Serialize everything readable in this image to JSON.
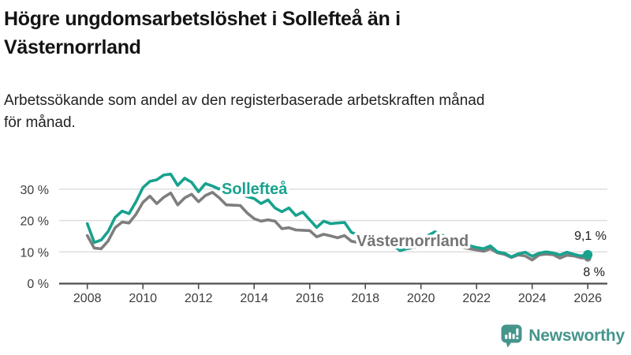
{
  "header": {
    "title_line1": "Högre ungdomsarbetslöshet i Sollefteå än i",
    "title_line2": "Västernorrland",
    "subtitle_line1": "Arbetssökande som andel av den registerbaserade arbetskraften månad",
    "subtitle_line2": "för månad."
  },
  "colors": {
    "solleftea": "#17a28e",
    "vasternorrland": "#7e7e7e",
    "vasternorrland_label": "#757575",
    "grid": "#dcdcdc",
    "axis": "#4d4d4d",
    "tick_text": "#3d3d3d",
    "value_text": "#1a1a1a",
    "logo": "#45958c"
  },
  "chart_data": {
    "type": "line",
    "title": "Högre ungdomsarbetslöshet i Sollefteå än i Västernorrland",
    "subtitle": "Arbetssökande som andel av den registerbaserade arbetskraften månad för månad.",
    "xlabel": "",
    "ylabel": "",
    "unit": "%",
    "xlim": [
      2007.9,
      2026.7
    ],
    "ylim": [
      0,
      36
    ],
    "grid": "horizontal",
    "x_ticks": [
      2008,
      2010,
      2012,
      2014,
      2016,
      2018,
      2020,
      2022,
      2024,
      2026
    ],
    "y_ticks": [
      0,
      10,
      20,
      30
    ],
    "y_tick_labels": [
      "0 %",
      "10 %",
      "20 %",
      "30 %"
    ],
    "series": [
      {
        "name": "Västernorrland",
        "color": "#7e7e7e",
        "last_value_label": "8 %",
        "points": [
          [
            2008.0,
            15.2
          ],
          [
            2008.25,
            11.2
          ],
          [
            2008.5,
            11.0
          ],
          [
            2008.75,
            13.5
          ],
          [
            2009.0,
            17.7
          ],
          [
            2009.25,
            19.5
          ],
          [
            2009.5,
            19.2
          ],
          [
            2009.75,
            22.0
          ],
          [
            2010.0,
            25.8
          ],
          [
            2010.25,
            27.8
          ],
          [
            2010.5,
            25.4
          ],
          [
            2010.75,
            27.4
          ],
          [
            2011.0,
            28.8
          ],
          [
            2011.25,
            25.0
          ],
          [
            2011.5,
            27.2
          ],
          [
            2011.75,
            28.4
          ],
          [
            2012.0,
            26.0
          ],
          [
            2012.25,
            28.0
          ],
          [
            2012.5,
            29.0
          ],
          [
            2012.75,
            27.2
          ],
          [
            2013.0,
            25.0
          ],
          [
            2013.25,
            24.9
          ],
          [
            2013.5,
            24.8
          ],
          [
            2013.75,
            22.4
          ],
          [
            2014.0,
            20.6
          ],
          [
            2014.25,
            19.8
          ],
          [
            2014.5,
            20.2
          ],
          [
            2014.75,
            19.8
          ],
          [
            2015.0,
            17.4
          ],
          [
            2015.25,
            17.7
          ],
          [
            2015.5,
            17.0
          ],
          [
            2015.75,
            16.9
          ],
          [
            2016.0,
            16.8
          ],
          [
            2016.25,
            14.8
          ],
          [
            2016.5,
            15.6
          ],
          [
            2016.75,
            15.1
          ],
          [
            2017.0,
            14.5
          ],
          [
            2017.25,
            15.2
          ],
          [
            2017.5,
            13.4
          ],
          [
            2017.75,
            13.0
          ],
          [
            2018.0,
            12.8
          ],
          [
            2018.25,
            12.4
          ],
          [
            2018.5,
            12.2
          ],
          [
            2018.75,
            12.0
          ],
          [
            2019.0,
            11.6
          ],
          [
            2019.25,
            10.8
          ],
          [
            2019.5,
            11.0
          ],
          [
            2019.75,
            11.4
          ],
          [
            2020.0,
            12.0
          ],
          [
            2020.25,
            13.4
          ],
          [
            2020.5,
            14.0
          ],
          [
            2020.75,
            13.4
          ],
          [
            2021.0,
            12.9
          ],
          [
            2021.25,
            12.0
          ],
          [
            2021.5,
            11.4
          ],
          [
            2021.75,
            11.0
          ],
          [
            2022.0,
            10.6
          ],
          [
            2022.25,
            10.2
          ],
          [
            2022.5,
            11.0
          ],
          [
            2022.75,
            9.7
          ],
          [
            2023.0,
            9.2
          ],
          [
            2023.25,
            8.2
          ],
          [
            2023.5,
            9.0
          ],
          [
            2023.75,
            8.7
          ],
          [
            2024.0,
            7.4
          ],
          [
            2024.25,
            9.0
          ],
          [
            2024.5,
            9.3
          ],
          [
            2024.75,
            9.1
          ],
          [
            2025.0,
            8.0
          ],
          [
            2025.25,
            8.9
          ],
          [
            2025.5,
            8.7
          ],
          [
            2025.75,
            8.1
          ],
          [
            2026.0,
            8.0
          ]
        ]
      },
      {
        "name": "Sollefteå",
        "color": "#17a28e",
        "last_value_label": "9,1 %",
        "points": [
          [
            2008.0,
            19.0
          ],
          [
            2008.25,
            13.0
          ],
          [
            2008.5,
            13.8
          ],
          [
            2008.75,
            16.5
          ],
          [
            2009.0,
            21.0
          ],
          [
            2009.25,
            23.0
          ],
          [
            2009.5,
            22.2
          ],
          [
            2009.75,
            26.0
          ],
          [
            2010.0,
            30.5
          ],
          [
            2010.25,
            32.5
          ],
          [
            2010.5,
            33.0
          ],
          [
            2010.75,
            34.5
          ],
          [
            2011.0,
            34.8
          ],
          [
            2011.25,
            31.2
          ],
          [
            2011.5,
            33.5
          ],
          [
            2011.75,
            32.2
          ],
          [
            2012.0,
            29.2
          ],
          [
            2012.25,
            31.8
          ],
          [
            2012.5,
            31.0
          ],
          [
            2012.75,
            30.0
          ],
          [
            2013.0,
            31.0
          ],
          [
            2013.25,
            30.2
          ],
          [
            2013.5,
            28.8
          ],
          [
            2013.75,
            27.6
          ],
          [
            2014.0,
            27.0
          ],
          [
            2014.25,
            25.4
          ],
          [
            2014.5,
            26.6
          ],
          [
            2014.75,
            24.0
          ],
          [
            2015.0,
            22.8
          ],
          [
            2015.25,
            24.0
          ],
          [
            2015.5,
            21.6
          ],
          [
            2015.75,
            22.7
          ],
          [
            2016.0,
            20.2
          ],
          [
            2016.25,
            17.8
          ],
          [
            2016.5,
            19.8
          ],
          [
            2016.75,
            19.0
          ],
          [
            2017.0,
            19.2
          ],
          [
            2017.25,
            19.4
          ],
          [
            2017.5,
            16.2
          ],
          [
            2017.75,
            15.4
          ],
          [
            2018.0,
            15.0
          ],
          [
            2018.25,
            14.2
          ],
          [
            2018.5,
            13.6
          ],
          [
            2018.75,
            13.0
          ],
          [
            2019.0,
            12.2
          ],
          [
            2019.25,
            10.4
          ],
          [
            2019.5,
            11.0
          ],
          [
            2019.75,
            12.0
          ],
          [
            2020.0,
            13.2
          ],
          [
            2020.25,
            15.2
          ],
          [
            2020.5,
            16.4
          ],
          [
            2020.75,
            15.4
          ],
          [
            2021.0,
            14.4
          ],
          [
            2021.25,
            13.4
          ],
          [
            2021.5,
            12.6
          ],
          [
            2021.75,
            12.0
          ],
          [
            2022.0,
            11.4
          ],
          [
            2022.25,
            11.0
          ],
          [
            2022.5,
            11.9
          ],
          [
            2022.75,
            10.0
          ],
          [
            2023.0,
            9.6
          ],
          [
            2023.25,
            8.4
          ],
          [
            2023.5,
            9.4
          ],
          [
            2023.75,
            9.9
          ],
          [
            2024.0,
            8.6
          ],
          [
            2024.25,
            9.6
          ],
          [
            2024.5,
            10.0
          ],
          [
            2024.75,
            9.7
          ],
          [
            2025.0,
            9.0
          ],
          [
            2025.25,
            9.9
          ],
          [
            2025.5,
            9.2
          ],
          [
            2025.75,
            8.7
          ],
          [
            2026.0,
            9.1
          ]
        ]
      }
    ],
    "series_labels": [
      {
        "text": "Sollefteå",
        "color": "#17a28e"
      },
      {
        "text": "Västernorrland",
        "color": "#757575"
      }
    ],
    "end_value_labels": [
      {
        "text": "9,1 %"
      },
      {
        "text": "8 %"
      }
    ],
    "legend_position": "inline-labels"
  },
  "logo": {
    "name": "Newsworthy",
    "icon": "speech-bubble-bar-chart-icon"
  }
}
